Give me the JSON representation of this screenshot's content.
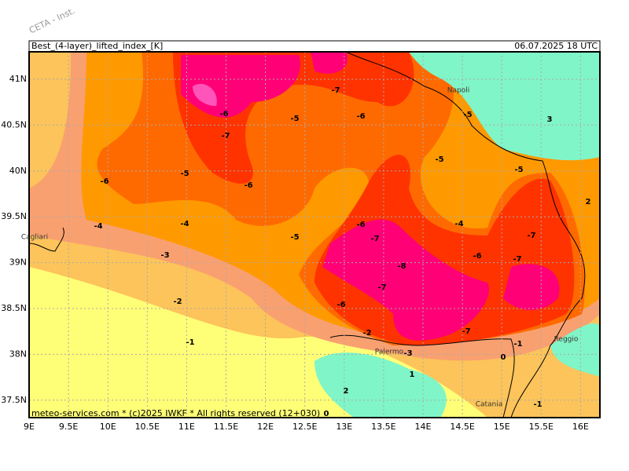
{
  "watermark": "CETA - Inst.",
  "header": {
    "title": "Best_(4-layer)_lifted_index_[K]",
    "date": "06.07.2025 18 UTC"
  },
  "axis": {
    "lat": [
      "41N",
      "40.5N",
      "40N",
      "39.5N",
      "39N",
      "38.5N",
      "38N",
      "37.5N"
    ],
    "lon": [
      "9E",
      "9.5E",
      "10E",
      "10.5E",
      "11E",
      "11.5E",
      "12E",
      "12.5E",
      "13E",
      "13.5E",
      "14E",
      "14.5E",
      "15E",
      "15.5E",
      "16E"
    ]
  },
  "contour_labels": [
    "-7",
    "-6",
    "-7",
    "-5",
    "-6",
    "-6",
    "-5",
    "-6",
    "-5",
    "-5",
    "-4",
    "-4",
    "-5",
    "-6",
    "-7",
    "-4",
    "-7",
    "-6",
    "-7",
    "-3",
    "-8",
    "-7",
    "-6",
    "-2",
    "-7",
    "-1",
    "-2",
    "-3",
    "-1",
    "0",
    "1",
    "2",
    "-1",
    "3",
    "2",
    "-5",
    "0"
  ],
  "places": [
    "Napoli",
    "Cagliari",
    "Palermo",
    "Catania",
    "Reggio"
  ],
  "footer": "meteo-services.com * (c)2025 IWKF * All rights reserved (12+030)"
}
